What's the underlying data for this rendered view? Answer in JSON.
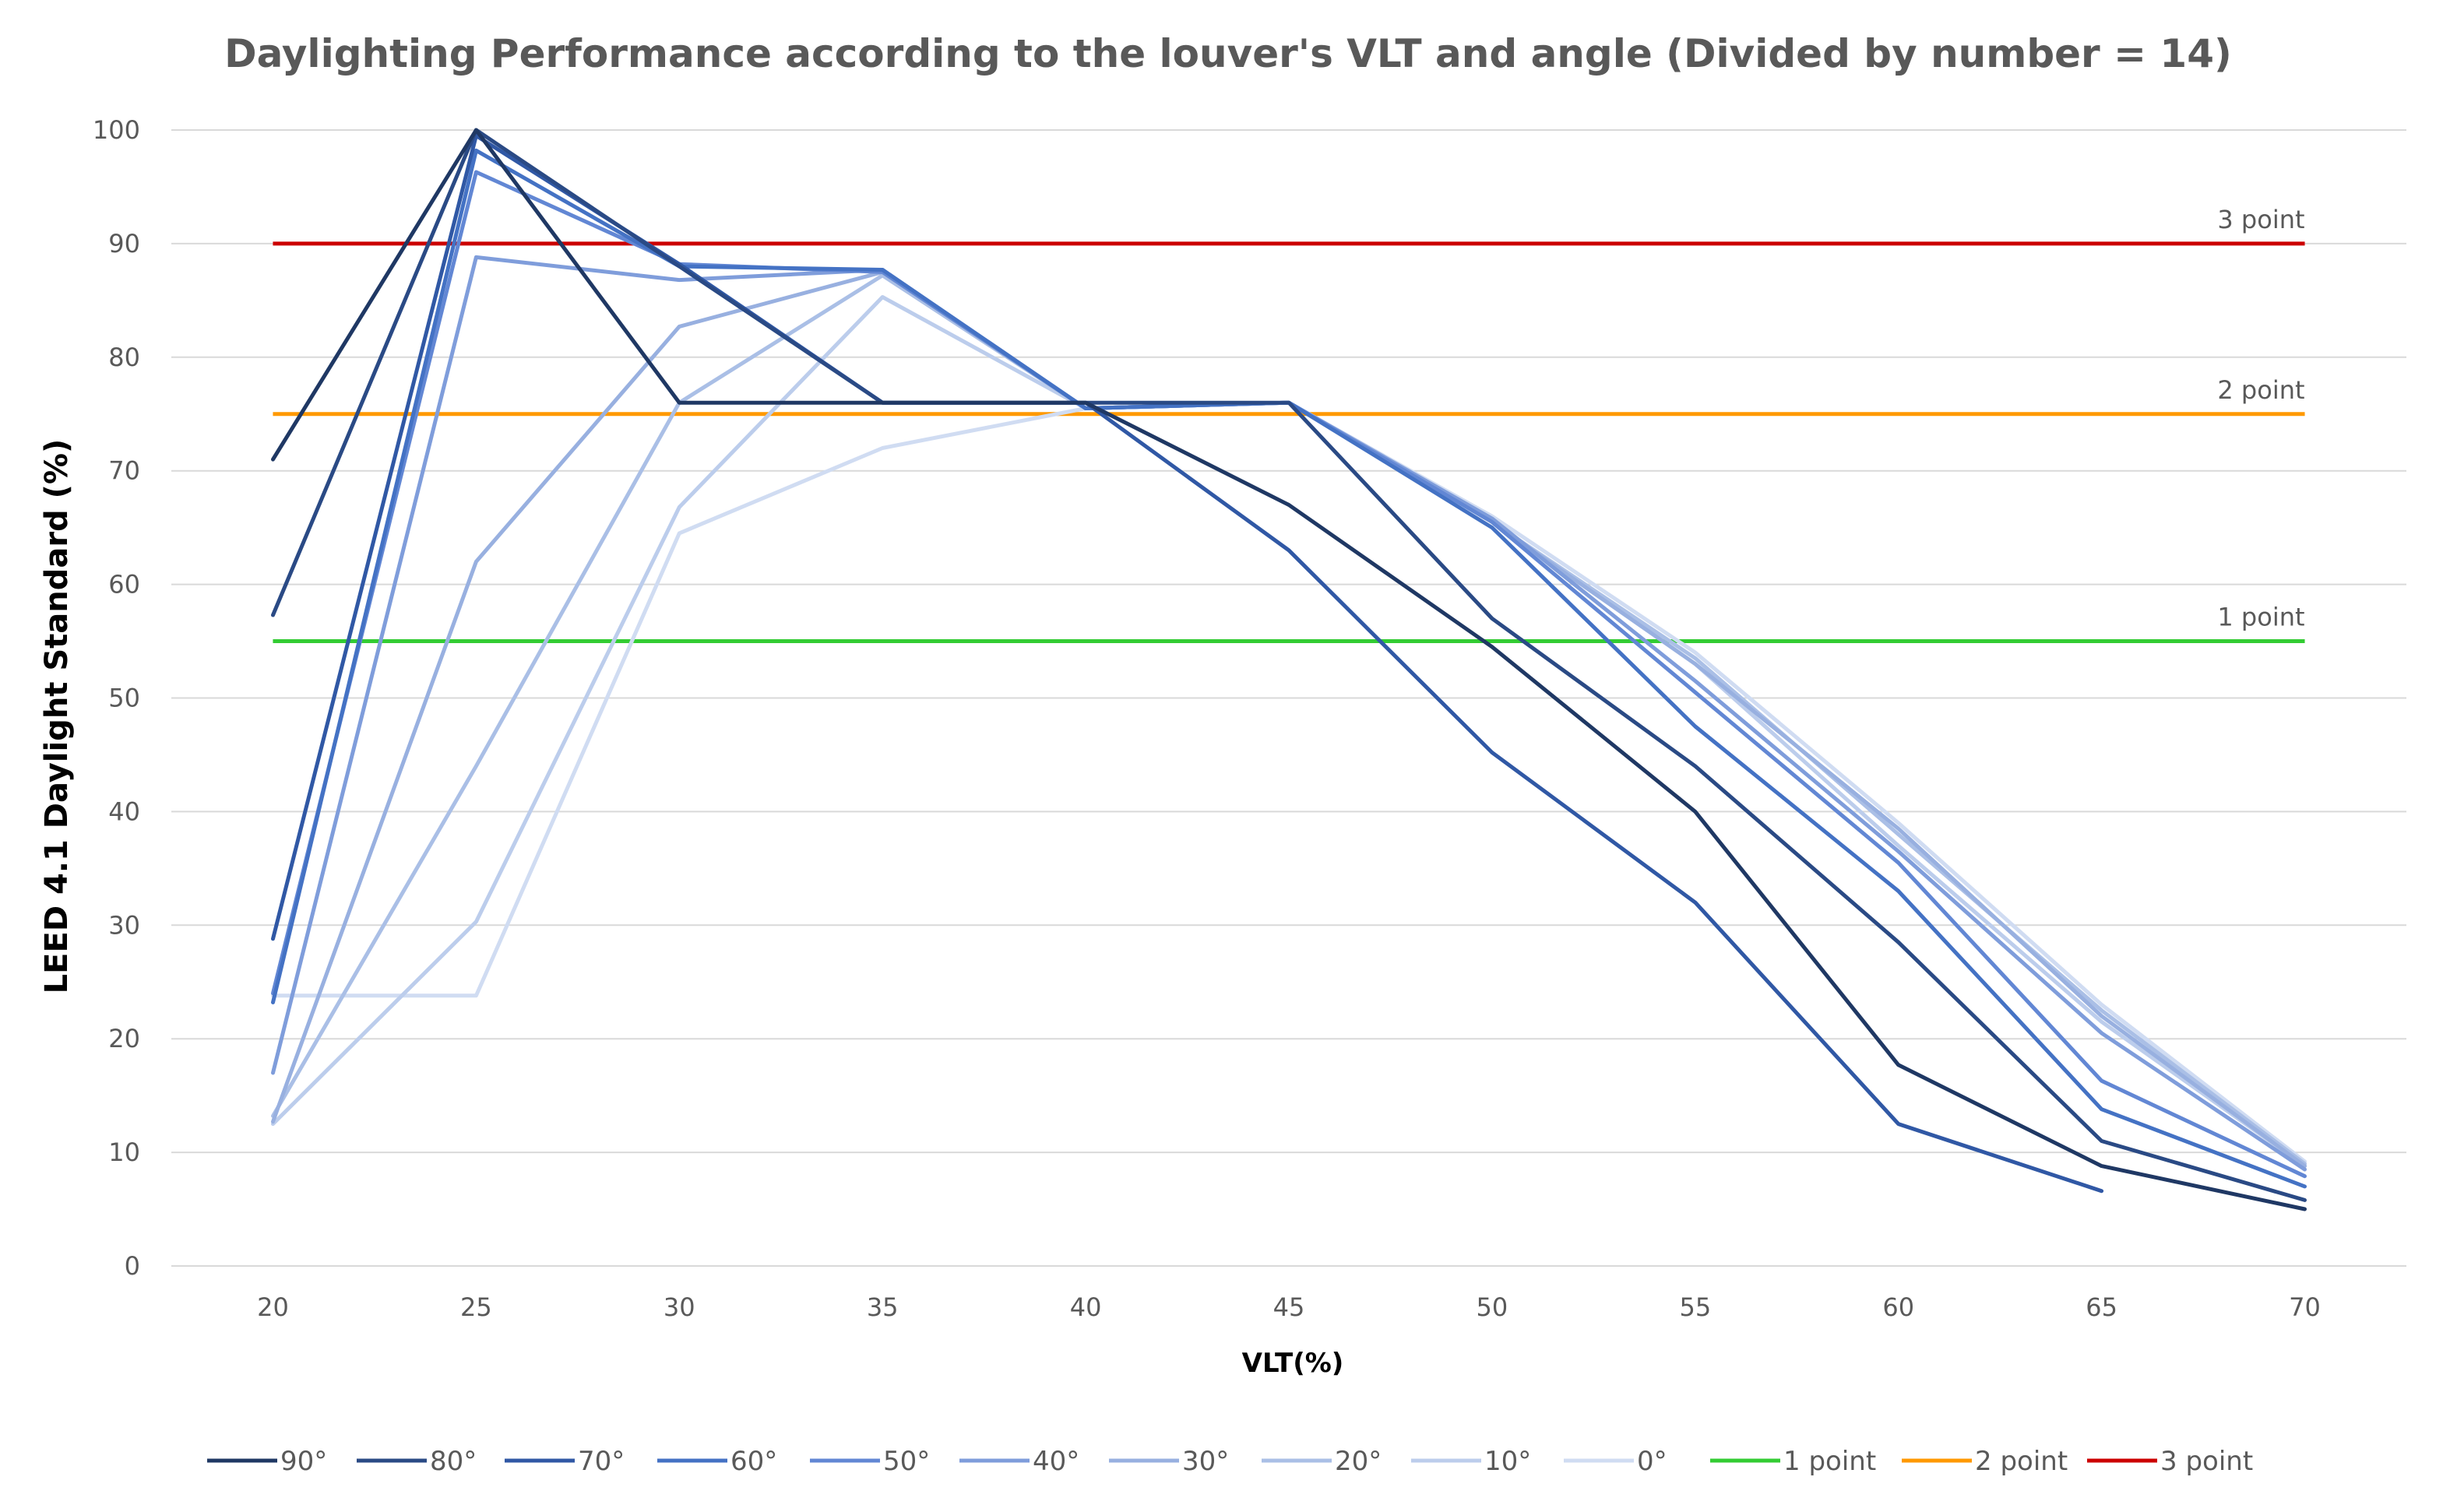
{
  "chart_data": {
    "type": "line",
    "title": "Daylighting Performance according to the louver's VLT and angle (Divided by number = 14)",
    "xlabel": "VLT(%)",
    "ylabel": "LEED 4.1 Daylight Standard (%)",
    "categories": [
      "20",
      "25",
      "30",
      "35",
      "40",
      "45",
      "50",
      "55",
      "60",
      "65",
      "70"
    ],
    "ylim": [
      0,
      100
    ],
    "yticks": [
      0,
      10,
      20,
      30,
      40,
      50,
      60,
      70,
      80,
      90,
      100
    ],
    "grid": true,
    "legend_position": "bottom",
    "series": [
      {
        "name": "90°",
        "color": "#1f3864",
        "values": [
          71,
          100,
          76,
          76,
          76,
          67,
          54.5,
          40,
          17.7,
          8.8,
          5
        ]
      },
      {
        "name": "80°",
        "color": "#2a4a85",
        "values": [
          57.3,
          100,
          88,
          76,
          76,
          76,
          57,
          44,
          28.5,
          11,
          5.8
        ]
      },
      {
        "name": "70°",
        "color": "#3058a5",
        "values": [
          28.8,
          99.5,
          88.2,
          76,
          76,
          63,
          45.2,
          32,
          12.5,
          6.6,
          null
        ]
      },
      {
        "name": "60°",
        "color": "#4472c4",
        "values": [
          23.2,
          98.2,
          88,
          87.7,
          75.5,
          76,
          65,
          47.5,
          33,
          13.8,
          7
        ]
      },
      {
        "name": "50°",
        "color": "#6287d4",
        "values": [
          24,
          96.3,
          88.2,
          87.5,
          75.5,
          76,
          65.5,
          50.5,
          35.5,
          16.3,
          7.9
        ]
      },
      {
        "name": "40°",
        "color": "#7f9ddb",
        "values": [
          17,
          88.8,
          86.8,
          87.7,
          75.5,
          76,
          65.8,
          51.5,
          36.5,
          20.5,
          8.5
        ]
      },
      {
        "name": "30°",
        "color": "#98b0e0",
        "values": [
          12.7,
          62,
          82.7,
          87.5,
          75.5,
          76,
          65.5,
          53,
          38.5,
          22,
          8.8
        ]
      },
      {
        "name": "20°",
        "color": "#aabfe6",
        "values": [
          13.2,
          44,
          76,
          87.2,
          75.5,
          76,
          65.5,
          53.5,
          38,
          22.5,
          9
        ]
      },
      {
        "name": "10°",
        "color": "#bccdec",
        "values": [
          12.5,
          30.3,
          66.8,
          85.3,
          75.5,
          76,
          65.5,
          53,
          37,
          21.5,
          8.8
        ]
      },
      {
        "name": "0°",
        "color": "#d0dcf2",
        "values": [
          23.8,
          23.8,
          64.5,
          72,
          75.5,
          76,
          66,
          54,
          39,
          23,
          9.2
        ]
      }
    ],
    "reference_lines": [
      {
        "name": "1 point",
        "label": "1 point",
        "value": 55,
        "color": "#33cc33"
      },
      {
        "name": "2 point",
        "label": "2 point",
        "value": 75,
        "color": "#ff9900"
      },
      {
        "name": "3 point",
        "label": "3 point",
        "value": 90,
        "color": "#cc0000"
      }
    ]
  }
}
